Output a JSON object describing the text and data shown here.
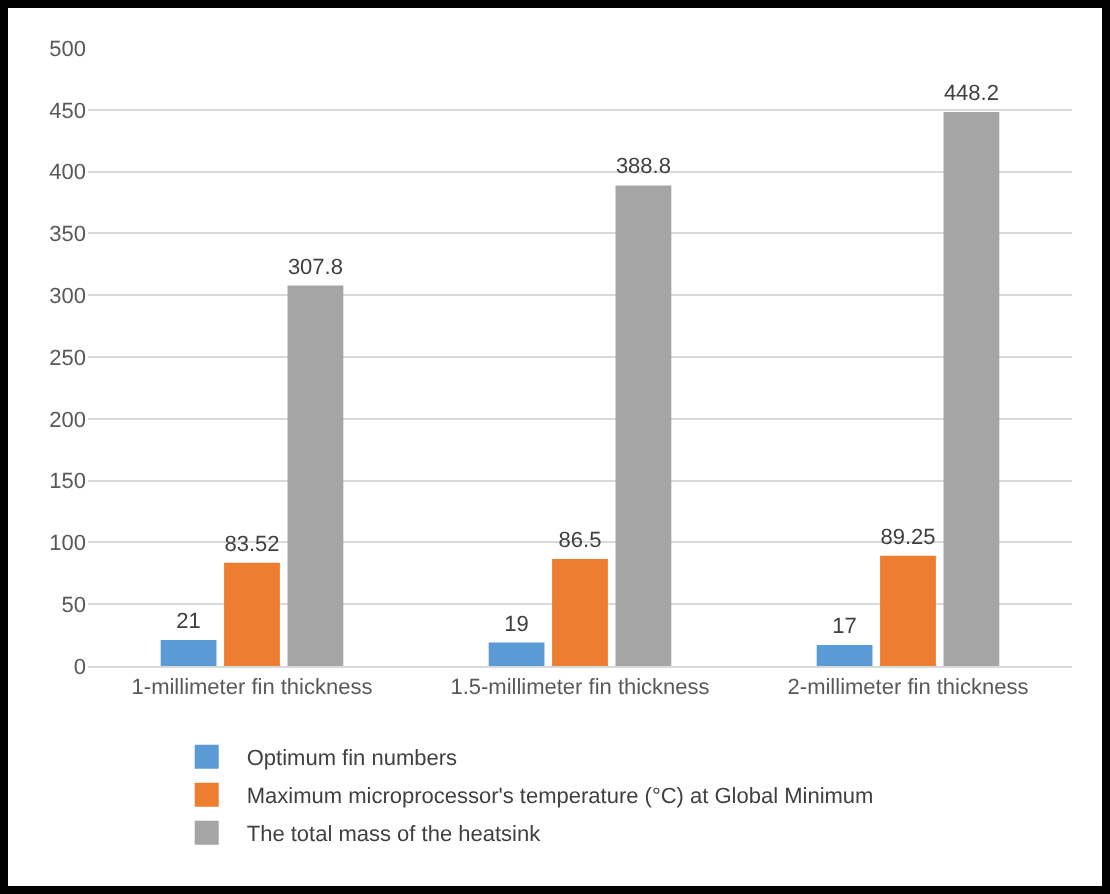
{
  "chart_data": {
    "type": "bar",
    "categories": [
      "1-millimeter fin thickness",
      "1.5-millimeter fin thickness",
      "2-millimeter fin thickness"
    ],
    "series": [
      {
        "name": "Optimum fin numbers",
        "color": "#5b9bd5",
        "values": [
          21,
          19,
          17
        ]
      },
      {
        "name": "Maximum microprocessor's temperature (°C) at Global Minimum",
        "color": "#ed7d31",
        "values": [
          83.52,
          86.5,
          89.25
        ]
      },
      {
        "name": "The total mass of the heatsink",
        "color": "#a5a5a5",
        "values": [
          307.8,
          388.8,
          448.2
        ]
      }
    ],
    "ylim": [
      0,
      500
    ],
    "yticks": [
      0,
      50,
      100,
      150,
      200,
      250,
      300,
      350,
      400,
      450,
      500
    ],
    "grid": "y",
    "legend": "bottom",
    "data_labels": true
  }
}
